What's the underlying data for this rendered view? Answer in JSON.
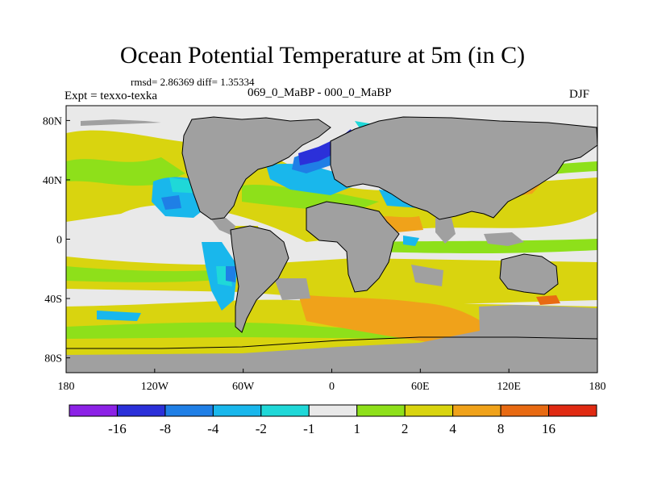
{
  "title": "Ocean Potential Temperature at 5m (in C)",
  "stats": "rmsd= 2.86369 diff= 1.35334",
  "experiment": "Expt = texxo-texka",
  "subtitle": "069_0_MaBP - 000_0_MaBP",
  "season": "DJF",
  "axes": {
    "x_ticks": [
      {
        "label": "180",
        "lon": -180
      },
      {
        "label": "120W",
        "lon": -120
      },
      {
        "label": "60W",
        "lon": -60
      },
      {
        "label": "0",
        "lon": 0
      },
      {
        "label": "60E",
        "lon": 60
      },
      {
        "label": "120E",
        "lon": 120
      },
      {
        "label": "180",
        "lon": 180
      }
    ],
    "y_ticks": [
      {
        "label": "80N",
        "lat": 80
      },
      {
        "label": "40N",
        "lat": 40
      },
      {
        "label": "0",
        "lat": 0
      },
      {
        "label": "40S",
        "lat": -40
      },
      {
        "label": "80S",
        "lat": -80
      }
    ],
    "lon_range": [
      -180,
      180
    ],
    "lat_range": [
      -90,
      90
    ]
  },
  "colorbar": {
    "labels": [
      "-16",
      "-8",
      "-4",
      "-2",
      "-1",
      "1",
      "2",
      "4",
      "8",
      "16"
    ],
    "colors": [
      "#8c22e6",
      "#2b30d9",
      "#1f7fe6",
      "#19b7ec",
      "#1fd8d8",
      "#e9e9e9",
      "#8ee01a",
      "#d9d40f",
      "#f0a21a",
      "#e86a12",
      "#e02a12"
    ]
  },
  "land_color": "#a0a0a0",
  "map_bg": "#e9e9e9"
}
